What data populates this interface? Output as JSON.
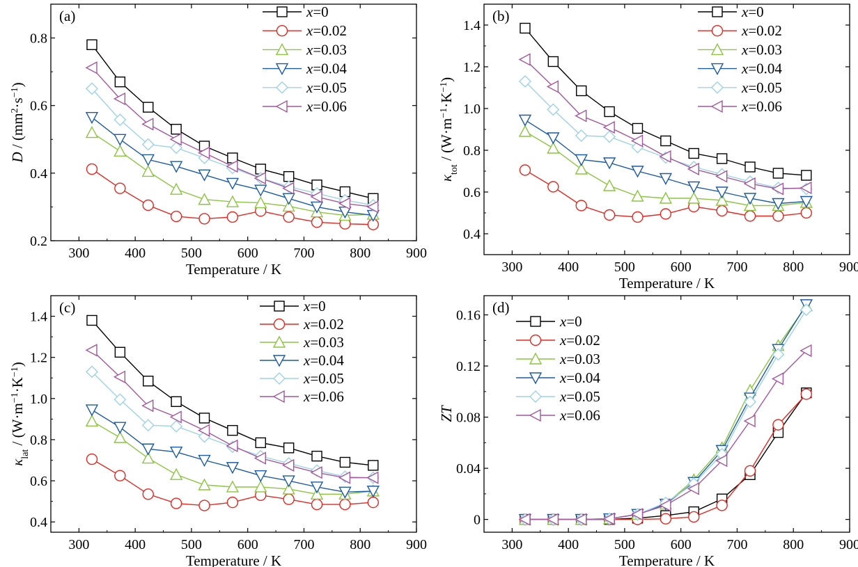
{
  "figure": {
    "chart_data": [
      {
        "type": "line",
        "panel_label": "(a)",
        "xlabel": "Temperature / K",
        "ylabel": {
          "var": "D",
          "rest": " / (mm",
          "sup1": "2",
          "mid": "·s",
          "sup2": "−1",
          "end": ")"
        },
        "xlim": [
          250,
          900
        ],
        "ylim": [
          0.2,
          0.9
        ],
        "xticks": [
          300,
          400,
          500,
          600,
          700,
          800,
          900
        ],
        "yticks": [
          0.2,
          0.4,
          0.6,
          0.8
        ],
        "ytick_labels": [
          "0.2",
          "0.4",
          "0.6",
          "0.8"
        ],
        "legend_position": "top-right",
        "x": [
          323,
          373,
          423,
          473,
          523,
          573,
          623,
          673,
          723,
          773,
          823
        ],
        "series": [
          {
            "name": "x=0",
            "values": [
              0.78,
              0.67,
              0.595,
              0.53,
              0.48,
              0.445,
              0.412,
              0.39,
              0.365,
              0.345,
              0.325
            ]
          },
          {
            "name": "x=0.02",
            "values": [
              0.412,
              0.355,
              0.305,
              0.272,
              0.265,
              0.27,
              0.288,
              0.27,
              0.255,
              0.25,
              0.248
            ]
          },
          {
            "name": "x=0.03",
            "values": [
              0.52,
              0.465,
              0.405,
              0.352,
              0.322,
              0.315,
              0.312,
              0.302,
              0.285,
              0.275,
              0.278
            ]
          },
          {
            "name": "x=0.04",
            "values": [
              0.565,
              0.5,
              0.44,
              0.42,
              0.395,
              0.37,
              0.35,
              0.325,
              0.3,
              0.285,
              0.275
            ]
          },
          {
            "name": "x=0.05",
            "values": [
              0.65,
              0.558,
              0.485,
              0.475,
              0.445,
              0.415,
              0.385,
              0.36,
              0.34,
              0.32,
              0.305
            ]
          },
          {
            "name": "x=0.06",
            "values": [
              0.712,
              0.62,
              0.545,
              0.5,
              0.46,
              0.42,
              0.385,
              0.355,
              0.33,
              0.31,
              0.3
            ]
          }
        ]
      },
      {
        "type": "line",
        "panel_label": "(b)",
        "xlabel": "Temperature / K",
        "ylabel": {
          "var": "κ",
          "sub": "tot",
          "rest": " / (W·m",
          "sup1": "−1",
          "mid": "·K",
          "sup2": "−1",
          "end": ")"
        },
        "xlim": [
          250,
          900
        ],
        "ylim": [
          0.3,
          1.5
        ],
        "xticks": [
          300,
          400,
          500,
          600,
          700,
          800,
          900
        ],
        "yticks": [
          0.4,
          0.6,
          0.8,
          1.0,
          1.2,
          1.4
        ],
        "ytick_labels": [
          "0.4",
          "0.6",
          "0.8",
          "1.0",
          "1.2",
          "1.4"
        ],
        "legend_position": "top-right",
        "x": [
          323,
          373,
          423,
          473,
          523,
          573,
          623,
          673,
          723,
          773,
          823
        ],
        "series": [
          {
            "name": "x=0",
            "values": [
              1.385,
              1.225,
              1.085,
              0.985,
              0.905,
              0.845,
              0.785,
              0.76,
              0.72,
              0.69,
              0.68
            ]
          },
          {
            "name": "x=0.02",
            "values": [
              0.705,
              0.625,
              0.535,
              0.49,
              0.48,
              0.495,
              0.53,
              0.51,
              0.485,
              0.485,
              0.5
            ]
          },
          {
            "name": "x=0.03",
            "values": [
              0.89,
              0.81,
              0.71,
              0.63,
              0.58,
              0.57,
              0.57,
              0.56,
              0.535,
              0.535,
              0.55
            ]
          },
          {
            "name": "x=0.04",
            "values": [
              0.945,
              0.86,
              0.755,
              0.74,
              0.7,
              0.665,
              0.625,
              0.6,
              0.57,
              0.545,
              0.555
            ]
          },
          {
            "name": "x=0.05",
            "values": [
              1.13,
              0.995,
              0.87,
              0.865,
              0.815,
              0.765,
              0.72,
              0.685,
              0.65,
              0.62,
              0.615
            ]
          },
          {
            "name": "x=0.06",
            "values": [
              1.235,
              1.105,
              0.965,
              0.91,
              0.845,
              0.77,
              0.71,
              0.675,
              0.64,
              0.615,
              0.62
            ]
          }
        ]
      },
      {
        "type": "line",
        "panel_label": "(c)",
        "xlabel": "Temperature / K",
        "ylabel": {
          "var": "κ",
          "sub": "lat",
          "rest": " / (W·m",
          "sup1": "−1",
          "mid": "·K",
          "sup2": "−1",
          "end": ")"
        },
        "xlim": [
          250,
          900
        ],
        "ylim": [
          0.35,
          1.5
        ],
        "xticks": [
          300,
          400,
          500,
          600,
          700,
          800,
          900
        ],
        "yticks": [
          0.4,
          0.6,
          0.8,
          1.0,
          1.2,
          1.4
        ],
        "ytick_labels": [
          "0.4",
          "0.6",
          "0.8",
          "1.0",
          "1.2",
          "1.4"
        ],
        "legend_position": "top-right",
        "x": [
          323,
          373,
          423,
          473,
          523,
          573,
          623,
          673,
          723,
          773,
          823
        ],
        "series": [
          {
            "name": "x=0",
            "values": [
              1.38,
              1.225,
              1.085,
              0.985,
              0.905,
              0.845,
              0.785,
              0.76,
              0.72,
              0.69,
              0.675
            ]
          },
          {
            "name": "x=0.02",
            "values": [
              0.705,
              0.625,
              0.535,
              0.49,
              0.48,
              0.495,
              0.53,
              0.51,
              0.485,
              0.485,
              0.495
            ]
          },
          {
            "name": "x=0.03",
            "values": [
              0.89,
              0.81,
              0.71,
              0.63,
              0.58,
              0.57,
              0.57,
              0.56,
              0.535,
              0.535,
              0.55
            ]
          },
          {
            "name": "x=0.04",
            "values": [
              0.945,
              0.86,
              0.755,
              0.74,
              0.7,
              0.665,
              0.625,
              0.6,
              0.57,
              0.545,
              0.55
            ]
          },
          {
            "name": "x=0.05",
            "values": [
              1.13,
              0.995,
              0.87,
              0.865,
              0.815,
              0.765,
              0.72,
              0.685,
              0.65,
              0.62,
              0.615
            ]
          },
          {
            "name": "x=0.06",
            "values": [
              1.235,
              1.105,
              0.965,
              0.91,
              0.845,
              0.77,
              0.71,
              0.675,
              0.64,
              0.615,
              0.615
            ]
          }
        ]
      },
      {
        "type": "line",
        "panel_label": "(d)",
        "xlabel": "Temperature / K",
        "ylabel": {
          "var": "ZT"
        },
        "xlim": [
          250,
          900
        ],
        "ylim": [
          -0.01,
          0.175
        ],
        "xticks": [
          300,
          400,
          500,
          600,
          700,
          800,
          900
        ],
        "yticks": [
          0,
          0.04,
          0.08,
          0.12,
          0.16
        ],
        "ytick_labels": [
          "0",
          "0.04",
          "0.08",
          "0.12",
          "0.16"
        ],
        "legend_position": "top-left",
        "x": [
          323,
          373,
          423,
          473,
          523,
          573,
          623,
          673,
          723,
          773,
          823
        ],
        "series": [
          {
            "name": "x=0",
            "values": [
              0,
              0,
              0,
              0,
              0.001,
              0.003,
              0.006,
              0.016,
              0.035,
              0.068,
              0.099
            ]
          },
          {
            "name": "x=0.02",
            "values": [
              0,
              0,
              0,
              0,
              0,
              0.0005,
              0.002,
              0.011,
              0.038,
              0.074,
              0.098
            ]
          },
          {
            "name": "x=0.03",
            "values": [
              0,
              0,
              0,
              0.0005,
              0.004,
              0.012,
              0.031,
              0.056,
              0.101,
              0.136,
              0.167
            ]
          },
          {
            "name": "x=0.04",
            "values": [
              0,
              0,
              0,
              0.0005,
              0.004,
              0.012,
              0.029,
              0.054,
              0.095,
              0.133,
              0.168
            ]
          },
          {
            "name": "x=0.05",
            "values": [
              0,
              0,
              0,
              0.0005,
              0.004,
              0.013,
              0.028,
              0.051,
              0.092,
              0.129,
              0.164
            ]
          },
          {
            "name": "x=0.06",
            "values": [
              0,
              0,
              0,
              0.0005,
              0.004,
              0.011,
              0.024,
              0.046,
              0.077,
              0.11,
              0.132
            ]
          }
        ]
      }
    ],
    "series_styles": [
      {
        "color": "#000000",
        "marker": "square"
      },
      {
        "color": "#e8261f",
        "marker": "circle"
      },
      {
        "color": "#8cc63f",
        "marker": "triangle-up"
      },
      {
        "color": "#1b5aa6",
        "marker": "triangle-down"
      },
      {
        "color": "#9ed2e8",
        "marker": "diamond"
      },
      {
        "color": "#a4579d",
        "marker": "triangle-left"
      }
    ]
  }
}
